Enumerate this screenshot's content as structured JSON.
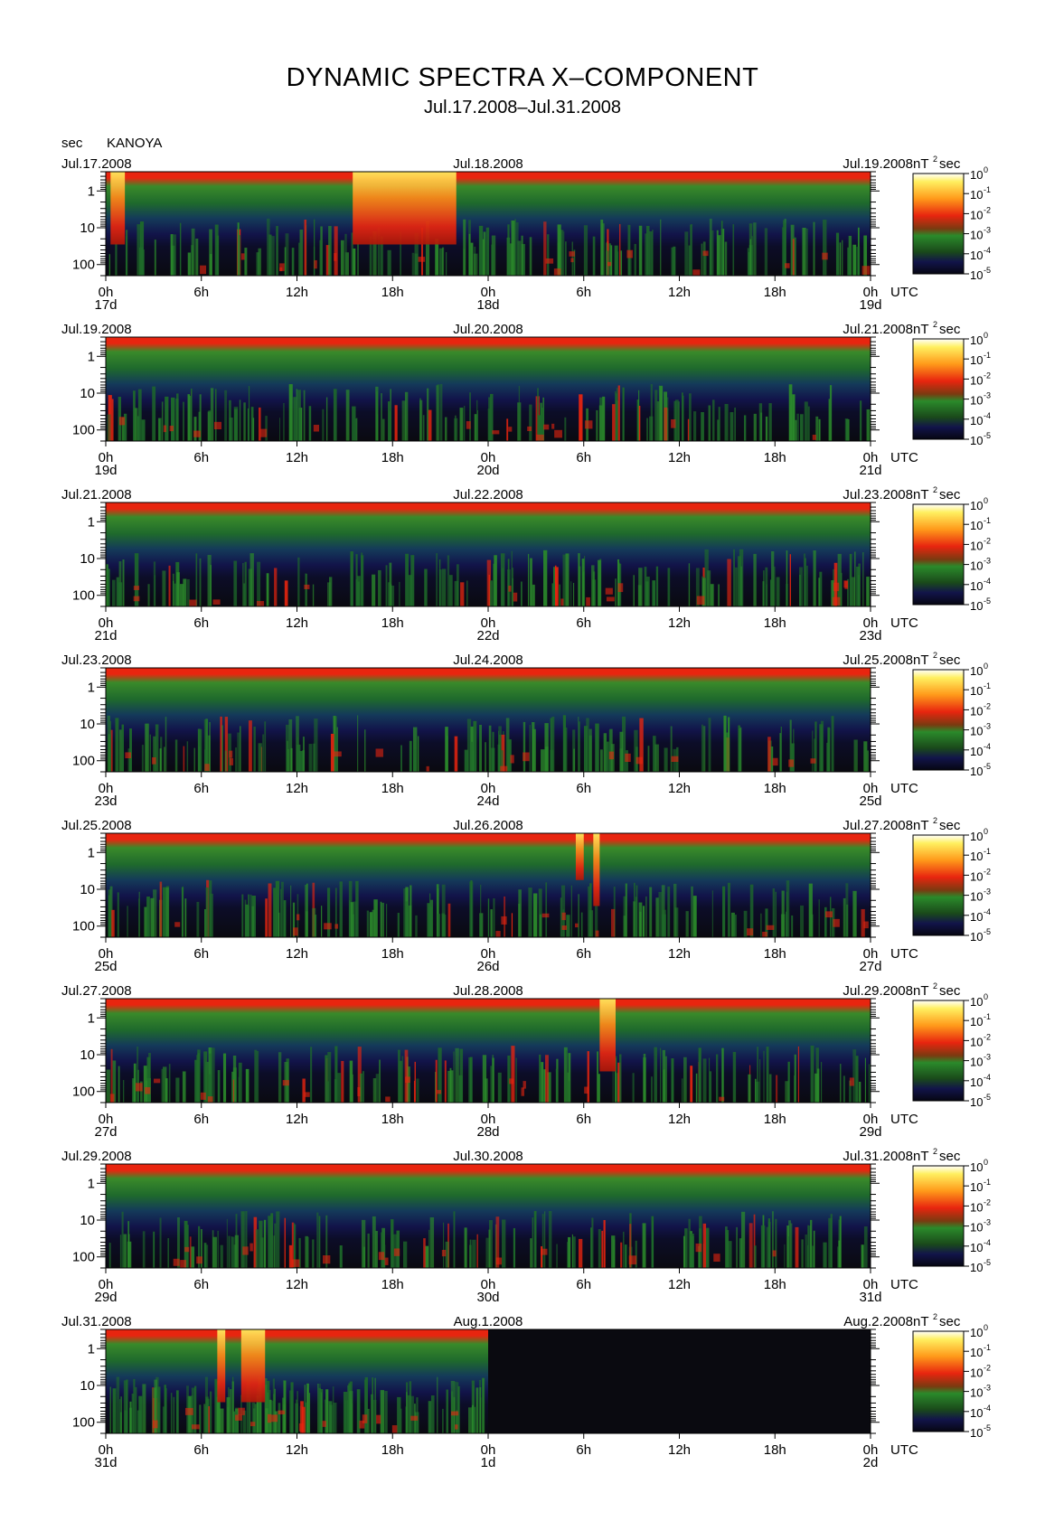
{
  "title": "DYNAMIC SPECTRA X–COMPONENT",
  "subtitle": "Jul.17.2008–Jul.31.2008",
  "y_unit": "sec",
  "station": "KANOYA",
  "colorbar_unit": "nT",
  "colorbar_unit_sup": "2",
  "colorbar_unit_suffix": "sec",
  "colorbar_ticks": [
    "0",
    "-1",
    "-2",
    "-3",
    "-4",
    "-5"
  ],
  "y_ticks": [
    "1",
    "10",
    "100"
  ],
  "x_ticks": [
    "0h",
    "6h",
    "12h",
    "18h",
    "0h",
    "6h",
    "12h",
    "18h",
    "0h"
  ],
  "x_unit": "UTC",
  "colors": {
    "background_dark": "#0a0a10",
    "low_noise": "#12144a",
    "green": "#2b8a2b",
    "red": "#e8250f",
    "yellow": "#fff060"
  },
  "chart_data": {
    "type": "heatmap",
    "title": "DYNAMIC SPECTRA X–COMPONENT",
    "subtitle": "Jul.17.2008–Jul.31.2008",
    "ylabel": "sec",
    "ylim": [
      200,
      0.3
    ],
    "y_scale": "log",
    "colorbar": {
      "label": "nT²sec",
      "scale": "log",
      "range": [
        1e-05,
        1
      ]
    },
    "panels": [
      {
        "left_date": "Jul.17.2008",
        "mid_date": "Jul.18.2008",
        "right_date": "Jul.19.2008",
        "day_labels": [
          "17d",
          "18d",
          "19d"
        ],
        "events": [
          {
            "start_h": 0.3,
            "end_h": 1.2,
            "intensity": "high"
          },
          {
            "start_h": 15.5,
            "end_h": 22.0,
            "intensity": "high"
          }
        ]
      },
      {
        "left_date": "Jul.19.2008",
        "mid_date": "Jul.20.2008",
        "right_date": "Jul.21.2008",
        "day_labels": [
          "19d",
          "20d",
          "21d"
        ],
        "events": []
      },
      {
        "left_date": "Jul.21.2008",
        "mid_date": "Jul.22.2008",
        "right_date": "Jul.23.2008",
        "day_labels": [
          "21d",
          "22d",
          "23d"
        ],
        "events": []
      },
      {
        "left_date": "Jul.23.2008",
        "mid_date": "Jul.24.2008",
        "right_date": "Jul.25.2008",
        "day_labels": [
          "23d",
          "24d",
          "25d"
        ],
        "events": []
      },
      {
        "left_date": "Jul.25.2008",
        "mid_date": "Jul.26.2008",
        "right_date": "Jul.27.2008",
        "day_labels": [
          "25d",
          "26d",
          "27d"
        ],
        "events": [
          {
            "start_h": 29.5,
            "end_h": 30.0,
            "intensity": "medium"
          },
          {
            "start_h": 30.6,
            "end_h": 31.0,
            "intensity": "high"
          }
        ]
      },
      {
        "left_date": "Jul.27.2008",
        "mid_date": "Jul.28.2008",
        "right_date": "Jul.29.2008",
        "day_labels": [
          "27d",
          "28d",
          "29d"
        ],
        "events": [
          {
            "start_h": 31.0,
            "end_h": 32.0,
            "intensity": "high"
          }
        ]
      },
      {
        "left_date": "Jul.29.2008",
        "mid_date": "Jul.30.2008",
        "right_date": "Jul.31.2008",
        "day_labels": [
          "29d",
          "30d",
          "31d"
        ],
        "events": []
      },
      {
        "left_date": "Jul.31.2008",
        "mid_date": "Aug.1.2008",
        "right_date": "Aug.2.2008",
        "day_labels": [
          "31d",
          "1d",
          "2d"
        ],
        "events": [
          {
            "start_h": 7.0,
            "end_h": 7.5,
            "intensity": "high"
          },
          {
            "start_h": 8.5,
            "end_h": 10.0,
            "intensity": "high"
          }
        ],
        "no_data_from_h": 24
      }
    ]
  }
}
